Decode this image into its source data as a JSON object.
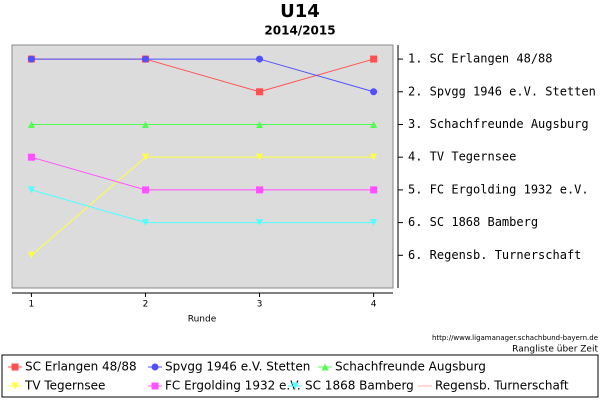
{
  "chart_data": {
    "type": "line",
    "title": "U14",
    "subtitle": "2014/2015",
    "x_label": "Runde",
    "source": "http://www.ligamanager.schachbund-bayern.de",
    "note": "Rangliste über Zeit",
    "x": [
      1,
      2,
      3,
      4
    ],
    "xlim": [
      0.83,
      4.17
    ],
    "xticks": [
      1,
      2,
      3,
      4
    ],
    "ylim": [
      8,
      0.57
    ],
    "yticks": [
      {
        "value": 1,
        "label": "1. SC Erlangen 48/88"
      },
      {
        "value": 2,
        "label": "2. Spvgg 1946 e.V. Stetten"
      },
      {
        "value": 3,
        "label": "3. Schachfreunde Augsburg"
      },
      {
        "value": 4,
        "label": "4. TV Tegernsee"
      },
      {
        "value": 5,
        "label": "5. FC Ergolding 1932 e.V."
      },
      {
        "value": 6,
        "label": "6. SC 1868 Bamberg"
      },
      {
        "value": 7,
        "label": "6. Regensb. Turnerschaft"
      }
    ],
    "series": [
      {
        "name": "SC Erlangen 48/88",
        "color": "#ff5050",
        "marker": "square",
        "values": [
          1,
          1,
          2,
          1
        ]
      },
      {
        "name": "Spvgg 1946 e.V. Stetten",
        "color": "#5050ff",
        "marker": "circle",
        "values": [
          1,
          1,
          1,
          2
        ]
      },
      {
        "name": "Schachfreunde Augsburg",
        "color": "#50ff50",
        "marker": "triangle-up",
        "values": [
          3,
          3,
          3,
          3
        ]
      },
      {
        "name": "TV Tegernsee",
        "color": "#ffff40",
        "marker": "triangle-down",
        "values": [
          7,
          4,
          4,
          4
        ]
      },
      {
        "name": "FC Ergolding 1932 e.V.",
        "color": "#ff50ff",
        "marker": "square",
        "values": [
          4,
          5,
          5,
          5
        ]
      },
      {
        "name": "SC 1868 Bamberg",
        "color": "#50ffff",
        "marker": "triangle-down",
        "values": [
          5,
          6,
          6,
          6
        ]
      },
      {
        "name": "Regensb. Turnerschaft",
        "color": "#ffb0b0",
        "values": [
          null,
          null,
          null,
          null
        ]
      }
    ]
  }
}
